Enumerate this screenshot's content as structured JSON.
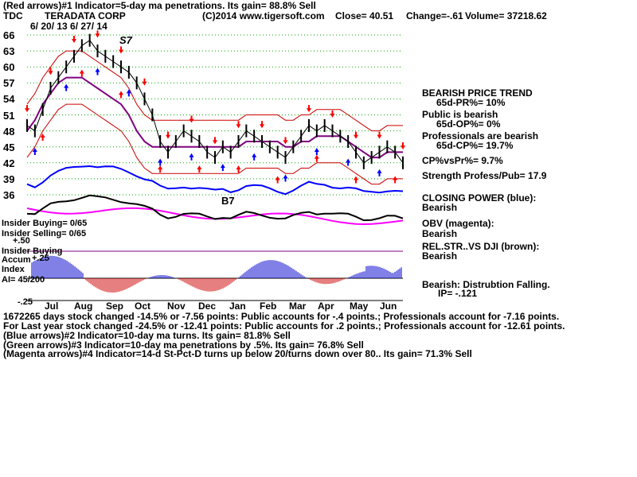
{
  "header": {
    "line1": "(Red arrows)#1 Indicator=5-day ma penetrations.  Its gain= 88.8% Sell",
    "line2": {
      "ticker": "TDC",
      "company": "TERADATA CORP",
      "copyright": "(C)2014 www.tigersoft.com",
      "close": "Close=  40.51",
      "change": "Change=-.61",
      "volume": "Volume= 37218.62"
    },
    "dates": "6/ 20/ 13   6/ 27/ 14",
    "marker_s7": "S7",
    "marker_b7": "B7"
  },
  "right_panel": {
    "trend_title": "BEARISH PRICE TREND",
    "pr": "65d-PR%= 10%",
    "public_title": "Public is bearish",
    "op": "65d-OP%= 0%",
    "prof_title": "Professionals are bearish",
    "cp": "65d-CP%= 19.7%",
    "cpvspr": "CP%vsPr%=  9.7%",
    "strength": "Strength Profess/Pub= 17.9",
    "closing_title": "CLOSING POWER (blue):",
    "closing_val": "Bearish",
    "obv_title": "OBV (magenta):",
    "obv_val": "Bearish",
    "rel_title": "REL.STR..VS DJI (brown):",
    "rel_val": "Bearish",
    "dist_title": "Bearish: Distrubtion Falling.",
    "ip": "IP= -.121"
  },
  "left_labels": {
    "insider_buying": "Insider Buying= 0/65",
    "insider_selling": "Insider Selling= 0/65",
    "plus50": "+.50",
    "insider_buying2": "Insider Buying",
    "accum": "Accum",
    "plus25": "+.25",
    "index": "Index",
    "ai": "AI= 45/200",
    "minus25": "-.25"
  },
  "footer": {
    "l1": "1672265 days stock changed -14.5% or -7.56 points:  Public accounts for -.4 points.;  Professionals account for -7.16 points.",
    "l2": "For Last year stock changed -24.5% or -12.41 points:  Public accounts for  .2 points.;  Professionals account for -12.61 points.",
    "l3": "(Blue arrows)#2 Indicator=10-day ma turns. Its gain= 81.8% Sell",
    "l4": "(Green arrows)#3 Indicator=10-day ma penetrations by .5%. Its gain= 76.8% Sell",
    "l5": "(Magenta arrows)#4 Indicator=14-d St-Pct-D turns up below 20/turns down over 80.. Its gain= 71.3% Sell"
  },
  "colors": {
    "price": "#000000",
    "closing_power": "#0000ff",
    "obv": "#ff00ff",
    "rel_str": "#800000",
    "ma": "#cc0000",
    "ma_long": "#800080",
    "grid": "#00aa00",
    "sell_arrow": "#ff0000",
    "buy_arrow": "#0000ff"
  },
  "chart_data": {
    "type": "line",
    "title": "TERADATA CORP",
    "ylim": [
      35,
      66
    ],
    "y_ticks": [
      36,
      39,
      42,
      45,
      48,
      51,
      54,
      57,
      60,
      63,
      66
    ],
    "months": [
      "Jul",
      "Aug",
      "Sep",
      "Oct",
      "Nov",
      "Dec",
      "Jan",
      "Feb",
      "Mar",
      "Apr",
      "May",
      "Jun"
    ],
    "series": [
      {
        "kind": "price",
        "values": [
          49,
          48,
          52,
          56,
          58,
          60,
          62,
          64,
          65,
          63,
          62,
          61,
          60,
          59,
          57,
          54,
          51,
          46,
          44,
          46,
          48,
          47,
          46,
          44,
          43,
          45,
          44,
          46,
          48,
          47,
          46,
          45,
          44,
          43,
          45,
          47,
          49,
          48,
          49,
          48,
          47,
          46,
          44,
          42,
          43,
          44,
          45,
          44,
          42
        ]
      },
      {
        "kind": "ma",
        "values": [
          48,
          50,
          53,
          55,
          57,
          58,
          58,
          58,
          57,
          56,
          55,
          54,
          53,
          51,
          48,
          46,
          45,
          45,
          45,
          45,
          45,
          45,
          45,
          45,
          45,
          45,
          45,
          45,
          46,
          46,
          46,
          46,
          46,
          45,
          45,
          46,
          46,
          47,
          47,
          47,
          47,
          46,
          45,
          44,
          43,
          43,
          44,
          44,
          44
        ]
      }
    ]
  }
}
